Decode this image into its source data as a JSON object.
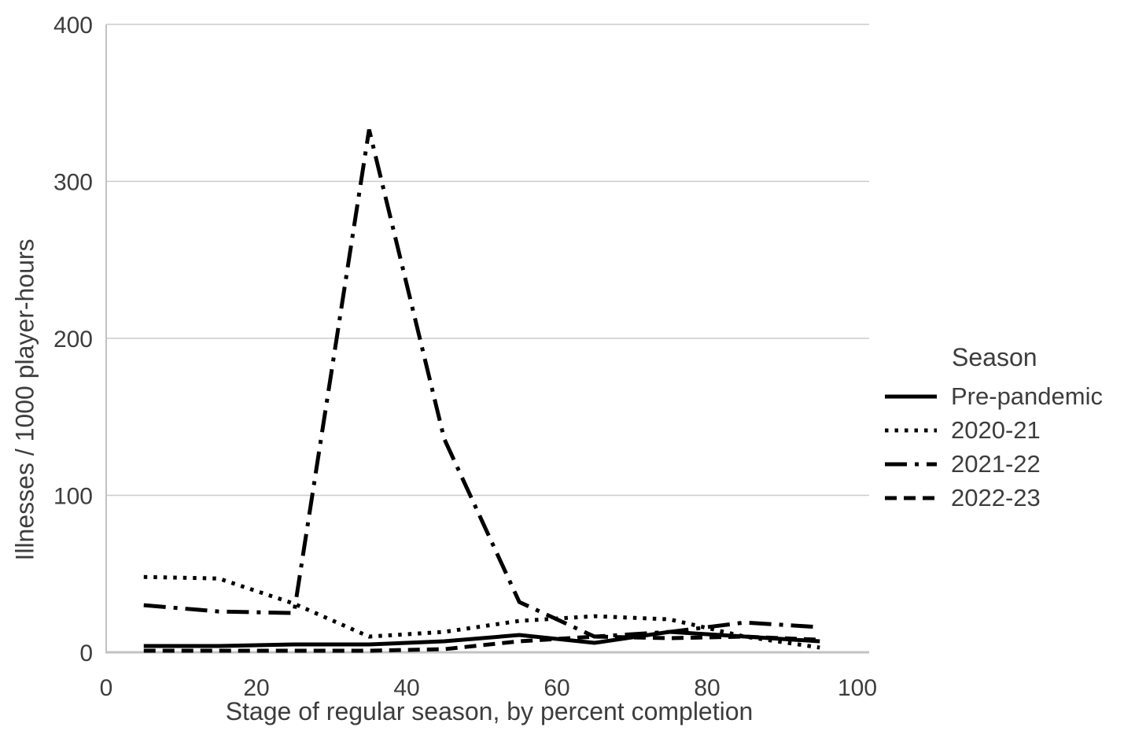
{
  "colors": {
    "line": "#000000",
    "text": "#3d3d3d",
    "grid": "#cccccc",
    "axis": "#c2c2c2",
    "background": "#ffffff"
  },
  "chart_data": {
    "type": "line",
    "xlabel": "Stage of regular season, by percent completion",
    "ylabel": "Illnesses / 1000 player-hours",
    "xlim": [
      0,
      100
    ],
    "ylim": [
      0,
      400
    ],
    "x_ticks": [
      0,
      20,
      40,
      60,
      80,
      100
    ],
    "y_ticks": [
      0,
      100,
      200,
      300,
      400
    ],
    "grid": "horizontal-gridlines-on",
    "legend": {
      "title": "Season",
      "position": "right"
    },
    "x": [
      5,
      15,
      25,
      35,
      45,
      55,
      65,
      75,
      85,
      95
    ],
    "series": [
      {
        "name": "Pre-pandemic",
        "dash": "solid",
        "values": [
          4,
          4,
          5,
          5,
          7,
          11,
          6,
          13,
          10,
          7
        ]
      },
      {
        "name": "2020-21",
        "dash": "dotted",
        "values": [
          48,
          47,
          31,
          10,
          13,
          20,
          23,
          21,
          10,
          3
        ]
      },
      {
        "name": "2021-22",
        "dash": "dashdot",
        "values": [
          30,
          26,
          25,
          333,
          136,
          32,
          10,
          13,
          19,
          16
        ]
      },
      {
        "name": "2022-23",
        "dash": "dashed",
        "values": [
          1,
          1,
          1,
          1,
          2,
          7,
          10,
          9,
          10,
          8
        ]
      }
    ]
  }
}
